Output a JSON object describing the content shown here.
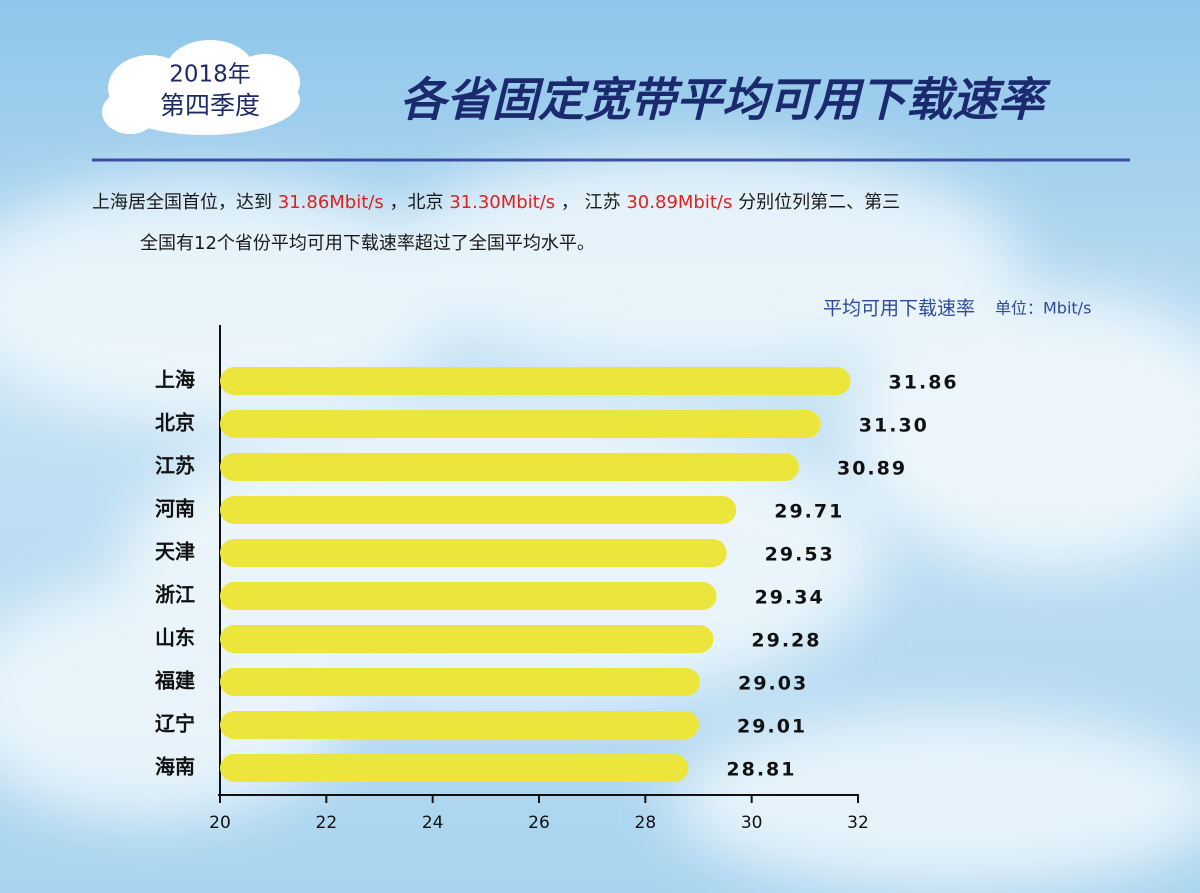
{
  "badge": [
    "2018年",
    "第四季度"
  ],
  "summary": [
    [
      {
        "text": "上海居全国首位，达到 ",
        "highlight": false
      },
      {
        "text": "31.86Mbit/s",
        "highlight": true
      },
      {
        "text": " ，北京 ",
        "highlight": false
      },
      {
        "text": "31.30Mbit/s",
        "highlight": true
      },
      {
        "text": " ， 江苏 ",
        "highlight": false
      },
      {
        "text": "30.89Mbit/s",
        "highlight": true
      },
      {
        "text": " 分别位列第二、第三",
        "highlight": false
      }
    ],
    [
      {
        "text": "全国有12个省份平均可用下载速率超过了全国平均水平。",
        "highlight": false
      }
    ]
  ],
  "chart_data": {
    "type": "bar",
    "orientation": "horizontal",
    "title": "各省固定宽带平均可用下载速率",
    "value_axis_title": "平均可用下载速率",
    "unit": "单位：Mbit/s",
    "categories": [
      "上海",
      "北京",
      "江苏",
      "河南",
      "天津",
      "浙江",
      "山东",
      "福建",
      "辽宁",
      "海南"
    ],
    "values": [
      31.86,
      31.3,
      30.89,
      29.71,
      29.53,
      29.34,
      29.28,
      29.03,
      29.01,
      28.81
    ],
    "value_labels": [
      "31.86",
      "31.30",
      "30.89",
      "29.71",
      "29.53",
      "29.34",
      "29.28",
      "29.03",
      "29.01",
      "28.81"
    ],
    "color": "#ece63c",
    "xlim": [
      20,
      32
    ],
    "xticks": [
      20,
      22,
      24,
      26,
      28,
      30,
      32
    ]
  }
}
